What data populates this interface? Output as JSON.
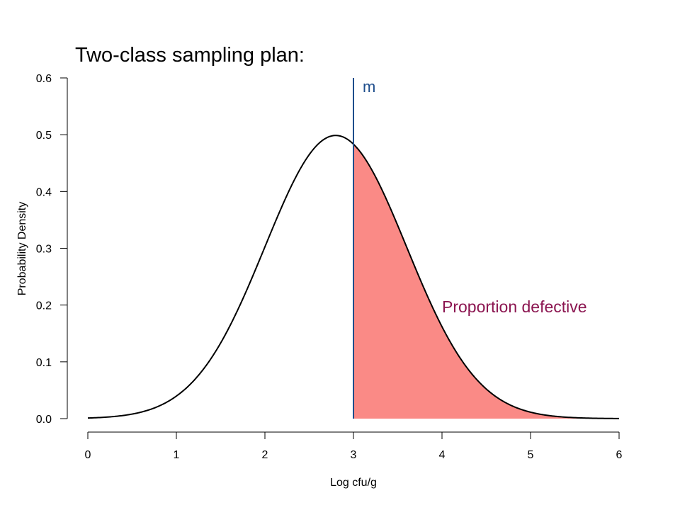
{
  "colors": {
    "curve": "#000000",
    "threshold": "#1f4e8c",
    "threshold_label": "#1f4e8c",
    "fill": "#fa8a86",
    "fill_label": "#8b1550"
  },
  "chart_data": {
    "type": "area",
    "title": "Two-class sampling plan:",
    "xlabel": "Log cfu/g",
    "ylabel": "Probability Density",
    "xlim": [
      0,
      6
    ],
    "ylim": [
      0,
      0.6
    ],
    "x_ticks": [
      0,
      1,
      2,
      3,
      4,
      5,
      6
    ],
    "x_tick_labels": [
      "0",
      "1",
      "2",
      "3",
      "4",
      "5",
      "6"
    ],
    "y_ticks": [
      0.0,
      0.1,
      0.2,
      0.3,
      0.4,
      0.5,
      0.6
    ],
    "y_tick_labels": [
      "0.0",
      "0.1",
      "0.2",
      "0.3",
      "0.4",
      "0.5",
      "0.6"
    ],
    "grid": false,
    "curve": {
      "distribution": "normal",
      "mean": 2.8,
      "sd": 0.8
    },
    "threshold": {
      "x": 3,
      "label": "m"
    },
    "shaded_region": {
      "from": 3,
      "to": 6,
      "label": "Proportion defective"
    }
  }
}
